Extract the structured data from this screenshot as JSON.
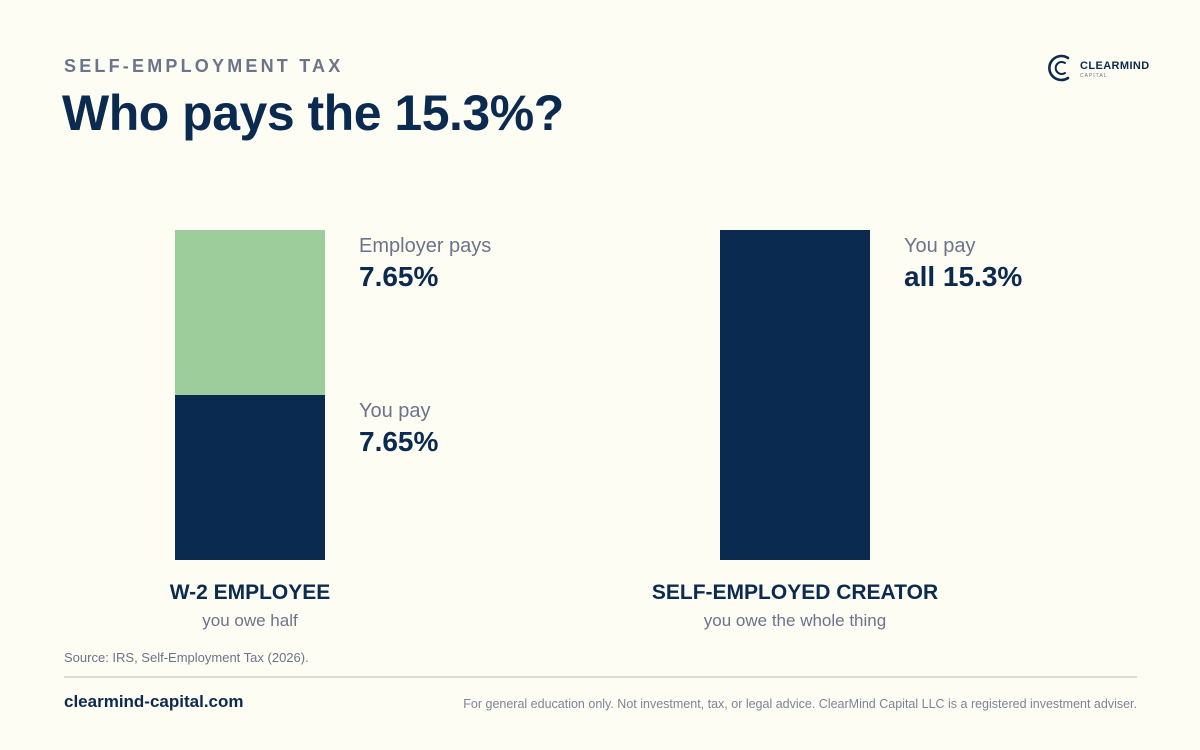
{
  "header": {
    "eyebrow": "SELF-EMPLOYMENT TAX",
    "title": "Who pays the 15.3%?"
  },
  "brand": {
    "name": "CLEARMIND",
    "tagline": "CAPITAL"
  },
  "colors": {
    "navy": "#0B2A4F",
    "green": "#9DCD9B",
    "muted": "#6B7489",
    "background": "#FDFDF3"
  },
  "chart_data": {
    "type": "bar",
    "stacked": true,
    "unit": "%",
    "ylim": [
      0,
      15.3
    ],
    "groups": [
      {
        "name": "W-2 EMPLOYEE",
        "subtitle": "you owe half",
        "segments": [
          {
            "label": "You pay",
            "value_label": "7.65%",
            "value": 7.65,
            "color": "#0B2A4F"
          },
          {
            "label": "Employer pays",
            "value_label": "7.65%",
            "value": 7.65,
            "color": "#9DCD9B"
          }
        ]
      },
      {
        "name": "SELF-EMPLOYED CREATOR",
        "subtitle": "you owe the whole thing",
        "segments": [
          {
            "label": "You pay",
            "value_label": "all 15.3%",
            "value": 15.3,
            "color": "#0B2A4F"
          }
        ]
      }
    ]
  },
  "footer": {
    "source": "Source: IRS, Self-Employment Tax (2026).",
    "website": "clearmind-capital.com",
    "disclaimer": "For general education only. Not investment, tax, or legal advice. ClearMind Capital LLC is a registered investment adviser."
  }
}
